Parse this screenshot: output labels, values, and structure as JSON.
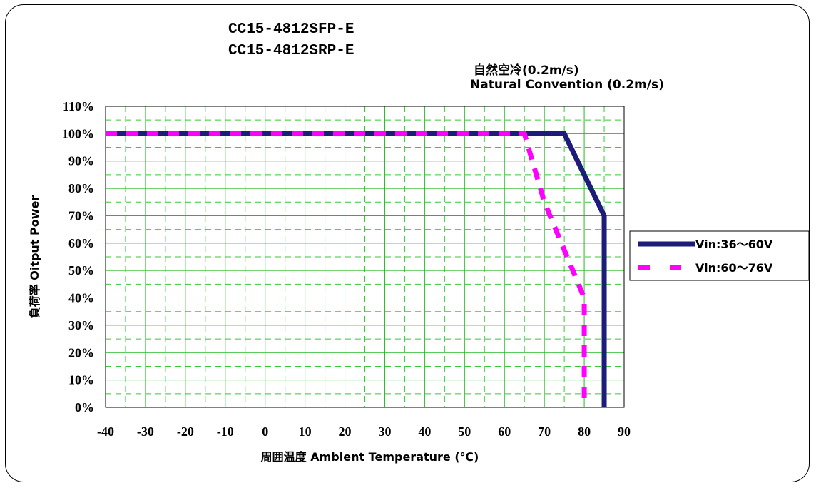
{
  "titles": [
    "CC15-4812SFP-E",
    "CC15-4812SRP-E"
  ],
  "condition": {
    "jp": "自然空冷(0.2m/s)",
    "en": "Natural Convention (0.2m/s)"
  },
  "chart_data": {
    "type": "line",
    "xlabel": "周囲温度 Ambient Temperature (℃)",
    "ylabel": "負荷率 Oitput Power",
    "xlim": [
      -40,
      90
    ],
    "ylim": [
      0,
      110
    ],
    "x_ticks": [
      "-40",
      "-30",
      "-20",
      "-10",
      "0",
      "10",
      "20",
      "30",
      "40",
      "50",
      "60",
      "70",
      "80",
      "90"
    ],
    "y_ticks": [
      "0%",
      "10%",
      "20%",
      "30%",
      "40%",
      "50%",
      "60%",
      "70%",
      "80%",
      "90%",
      "100%",
      "110%"
    ],
    "grid": true,
    "legend_position": "right",
    "series": [
      {
        "name": "Vin:36～60V",
        "color": "#1c1c7a",
        "style": "solid",
        "points": [
          [
            -40,
            100
          ],
          [
            75,
            100
          ],
          [
            85,
            70
          ],
          [
            85,
            0
          ]
        ]
      },
      {
        "name": "Vin:60～76V",
        "color": "#ff00ff",
        "style": "dashed",
        "points": [
          [
            -40,
            100
          ],
          [
            65,
            100
          ],
          [
            70,
            75
          ],
          [
            80,
            40
          ],
          [
            80,
            0
          ]
        ]
      }
    ]
  }
}
